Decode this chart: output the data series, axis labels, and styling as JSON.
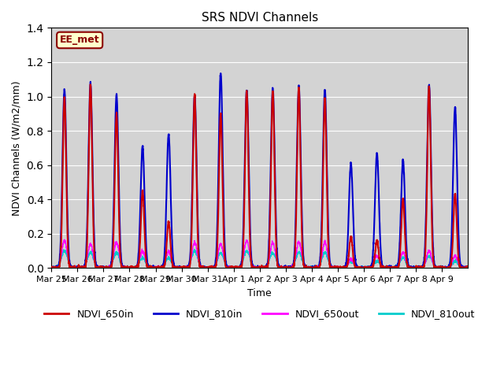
{
  "title": "SRS NDVI Channels",
  "xlabel": "Time",
  "ylabel": "NDVI Channels (W/m2/mm)",
  "annotation": "EE_met",
  "ylim": [
    0,
    1.4
  ],
  "legend": [
    "NDVI_650in",
    "NDVI_810in",
    "NDVI_650out",
    "NDVI_810out"
  ],
  "colors": [
    "#cc0000",
    "#0000cc",
    "#ff00ff",
    "#00cccc"
  ],
  "linewidths": [
    1.5,
    1.5,
    1.0,
    1.0
  ],
  "bg_color": "#d3d3d3",
  "tick_labels": [
    "Mar 25",
    "Mar 26",
    "Mar 27",
    "Mar 28",
    "Mar 29",
    "Mar 30",
    "Mar 31",
    "Apr 1",
    "Apr 2",
    "Apr 3",
    "Apr 4",
    "Apr 5",
    "Apr 6",
    "Apr 7",
    "Apr 8",
    "Apr 9"
  ],
  "num_days": 16,
  "peaks_650in": [
    1.0,
    1.07,
    0.9,
    0.45,
    0.27,
    1.01,
    0.9,
    1.03,
    1.03,
    1.05,
    0.99,
    0.18,
    0.16,
    0.4,
    1.06,
    0.43
  ],
  "peaks_810in": [
    1.04,
    1.08,
    1.01,
    0.71,
    0.78,
    1.01,
    1.14,
    1.04,
    1.05,
    1.06,
    1.04,
    0.61,
    0.67,
    0.63,
    1.07,
    0.94
  ],
  "peaks_650out": [
    0.16,
    0.14,
    0.15,
    0.1,
    0.1,
    0.15,
    0.14,
    0.16,
    0.15,
    0.15,
    0.15,
    0.05,
    0.07,
    0.09,
    0.1,
    0.07
  ],
  "peaks_810out": [
    0.1,
    0.09,
    0.09,
    0.06,
    0.06,
    0.1,
    0.09,
    0.1,
    0.09,
    0.09,
    0.09,
    0.04,
    0.04,
    0.06,
    0.07,
    0.04
  ],
  "figsize": [
    6.4,
    4.8
  ],
  "dpi": 100
}
